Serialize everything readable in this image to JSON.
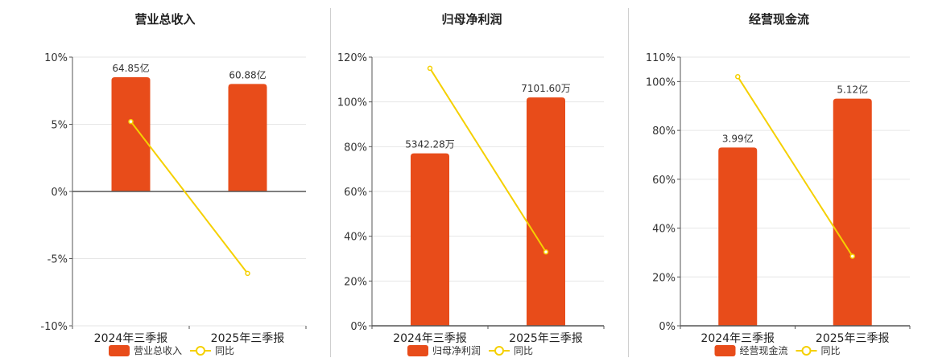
{
  "legend_colors": {
    "bar": "#e84c1a",
    "line": "#f5d000"
  },
  "chart_data": [
    {
      "type": "bar",
      "title": "营业总收入",
      "categories": [
        "2024年三季报",
        "2025年三季报"
      ],
      "series": [
        {
          "name": "营业总收入",
          "type": "bar",
          "values": [
            8.5,
            8.0
          ],
          "labels": [
            "64.85亿",
            "60.88亿"
          ]
        },
        {
          "name": "同比",
          "type": "line",
          "values": [
            5.2,
            -6.1
          ]
        }
      ],
      "ylim": [
        -10,
        10
      ],
      "yticks": [
        -10,
        -5,
        0,
        5,
        10
      ],
      "ytick_labels": [
        "-10%",
        "-5%",
        "0%",
        "5%",
        "10%"
      ],
      "grid": true,
      "legend": "bottom"
    },
    {
      "type": "bar",
      "title": "归母净利润",
      "categories": [
        "2024年三季报",
        "2025年三季报"
      ],
      "series": [
        {
          "name": "归母净利润",
          "type": "bar",
          "values": [
            77,
            102
          ],
          "labels": [
            "5342.28万",
            "7101.60万"
          ]
        },
        {
          "name": "同比",
          "type": "line",
          "values": [
            115,
            33
          ]
        }
      ],
      "ylim": [
        0,
        120
      ],
      "yticks": [
        0,
        20,
        40,
        60,
        80,
        100,
        120
      ],
      "ytick_labels": [
        "0%",
        "20%",
        "40%",
        "60%",
        "80%",
        "100%",
        "120%"
      ],
      "grid": true,
      "legend": "bottom"
    },
    {
      "type": "bar",
      "title": "经营现金流",
      "categories": [
        "2024年三季报",
        "2025年三季报"
      ],
      "series": [
        {
          "name": "经营现金流",
          "type": "bar",
          "values": [
            73,
            93
          ],
          "labels": [
            "3.99亿",
            "5.12亿"
          ]
        },
        {
          "name": "同比",
          "type": "line",
          "values": [
            102,
            28.5
          ]
        }
      ],
      "ylim": [
        0,
        110
      ],
      "yticks": [
        0,
        20,
        40,
        60,
        80,
        100,
        110
      ],
      "ytick_labels": [
        "0%",
        "20%",
        "40%",
        "60%",
        "80%",
        "100%",
        "110%"
      ],
      "grid": true,
      "legend": "bottom"
    }
  ]
}
